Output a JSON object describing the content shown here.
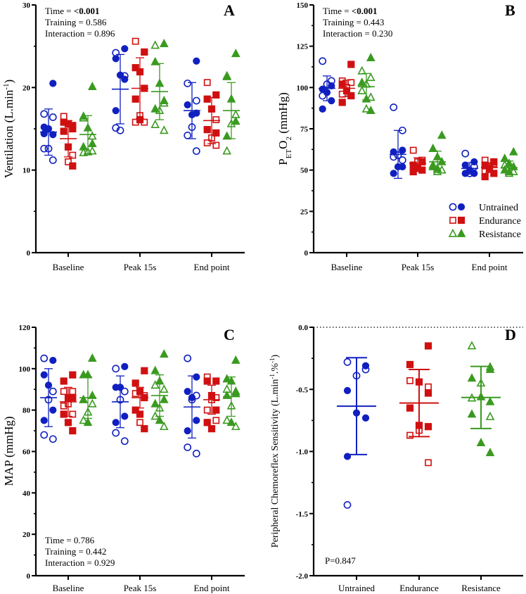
{
  "colors": {
    "untrained": "#1020c0",
    "endurance": "#d01010",
    "resistance": "#3a9a20",
    "axis": "#000000"
  },
  "legend": {
    "placement": "bottom-right of panel B",
    "entries": [
      {
        "name": "Untrained",
        "marker": "circle"
      },
      {
        "name": "Endurance",
        "marker": "square"
      },
      {
        "name": "Resistance",
        "marker": "triangle"
      }
    ]
  },
  "chart_data": [
    {
      "panel": "A",
      "type": "scatter",
      "title": "",
      "xlabel": "",
      "ylabel": "Ventilation (L.min-1)",
      "ylim": [
        0,
        30
      ],
      "yticks": [
        0,
        10,
        20,
        30
      ],
      "ytick_labels": [
        "0",
        "10",
        "20",
        "30"
      ],
      "minor_step": 5,
      "categories": [
        "Baseline",
        "Peak 15s",
        "End point"
      ],
      "stats": {
        "time_label": "Time = ",
        "time_value": "<0.001",
        "time_bold": true,
        "lines": [
          "Training = 0.586",
          "Interaction = 0.896"
        ]
      },
      "stats_position": "top-left",
      "series": [
        {
          "name": "Untrained",
          "groups": [
            {
              "mean": 14.6,
              "sd": 2.8,
              "open": [
                16.8,
                16.4,
                12.6,
                12.6,
                11.2
              ],
              "filled": [
                20.5,
                15.2,
                15.0,
                14.3,
                14.4
              ]
            },
            {
              "mean": 19.8,
              "sd": 4.2,
              "open": [
                24.2,
                21.4,
                14.8,
                15.1
              ],
              "filled": [
                24.7,
                23.5,
                21.5,
                21.0,
                17.2
              ]
            },
            {
              "mean": 17.2,
              "sd": 3.4,
              "open": [
                20.5,
                18.4,
                15.2,
                14.2,
                12.3
              ],
              "filled": [
                23.2,
                17.9,
                16.7,
                16.9
              ]
            }
          ]
        },
        {
          "name": "Endurance",
          "groups": [
            {
              "mean": 13.8,
              "sd": 2.2,
              "open": [
                16.5,
                11.8,
                11.0
              ],
              "filled": [
                15.4,
                15.8,
                15.6,
                15.0,
                14.7,
                12.8,
                10.5
              ]
            },
            {
              "mean": 19.9,
              "sd": 3.7,
              "open": [
                25.6,
                24.3,
                16.6,
                15.8,
                15.8
              ],
              "filled": [
                24.3,
                22.4,
                21.9,
                19.9,
                18.6,
                16.1
              ]
            },
            {
              "mean": 16.0,
              "sd": 2.8,
              "open": [
                20.6,
                16.1,
                13.9,
                13.3,
                13.0
              ],
              "filled": [
                19.1,
                18.6,
                17.4,
                14.5,
                14.9
              ]
            }
          ]
        },
        {
          "name": "Resistance",
          "groups": [
            {
              "mean": 14.3,
              "sd": 2.3,
              "open": [
                16.3,
                14.1,
                12.2,
                12.1,
                12.3
              ],
              "filled": [
                20.1,
                16.5,
                15.1,
                13.2,
                12.8
              ]
            },
            {
              "mean": 19.5,
              "sd": 3.4,
              "open": [
                25.1,
                18.1,
                17.2,
                15.5,
                14.8
              ],
              "filled": [
                25.3,
                23.1,
                20.5,
                18.4,
                17.4
              ]
            },
            {
              "mean": 17.2,
              "sd": 3.4,
              "open": [
                21.3,
                16.7,
                15.6,
                12.3
              ],
              "filled": [
                24.1,
                21.4,
                18.6,
                15.9,
                14.1
              ]
            }
          ]
        }
      ]
    },
    {
      "panel": "B",
      "type": "scatter",
      "title": "",
      "xlabel": "",
      "ylabel": "PETO2 (mmHg)",
      "ylim": [
        0,
        150
      ],
      "yticks": [
        0,
        25,
        50,
        75,
        100,
        125,
        150
      ],
      "ytick_labels": [
        "0",
        "25",
        "50",
        "75",
        "100",
        "125",
        "150"
      ],
      "minor_step": 12.5,
      "categories": [
        "Baseline",
        "Peak 15s",
        "End point"
      ],
      "stats": {
        "time_label": "Time = ",
        "time_value": "<0.001",
        "time_bold": true,
        "lines": [
          "Training = 0.443",
          "Interaction = 0.230"
        ]
      },
      "stats_position": "top-left",
      "series": [
        {
          "name": "Untrained",
          "groups": [
            {
              "mean": 99.5,
              "sd": 7.5,
              "open": [
                116,
                104,
                102,
                95
              ],
              "filled": [
                101,
                99,
                97,
                92,
                87
              ]
            },
            {
              "mean": 59.5,
              "sd": 14.5,
              "open": [
                88,
                74,
                59,
                58,
                56
              ],
              "filled": [
                62,
                61,
                52,
                52,
                48
              ]
            },
            {
              "mean": 51.0,
              "sd": 3.5,
              "open": [
                60,
                52,
                48
              ],
              "filled": [
                55,
                53,
                50,
                48,
                48
              ]
            }
          ]
        },
        {
          "name": "Endurance",
          "groups": [
            {
              "mean": 99.5,
              "sd": 5.0,
              "open": [
                104,
                103,
                100,
                96
              ],
              "filled": [
                114,
                102,
                98,
                95,
                91
              ]
            },
            {
              "mean": 54.0,
              "sd": 3.5,
              "open": [
                62,
                56,
                55
              ],
              "filled": [
                55,
                53,
                51,
                50,
                49
              ]
            },
            {
              "mean": 51.5,
              "sd": 3.0,
              "open": [
                56,
                54,
                52,
                49
              ],
              "filled": [
                55,
                53,
                51,
                48,
                46
              ]
            }
          ]
        },
        {
          "name": "Resistance",
          "groups": [
            {
              "mean": 100.5,
              "sd": 8.0,
              "open": [
                110,
                106,
                102,
                98,
                94,
                87
              ],
              "filled": [
                118,
                103,
                93,
                86
              ]
            },
            {
              "mean": 55.0,
              "sd": 6.5,
              "open": [
                53,
                50,
                49
              ],
              "filled": [
                71,
                63,
                58,
                55,
                52,
                51
              ]
            },
            {
              "mean": 51.5,
              "sd": 4.0,
              "open": [
                53,
                49,
                48
              ],
              "filled": [
                61,
                57,
                54,
                52,
                50,
                49
              ]
            }
          ]
        }
      ]
    },
    {
      "panel": "C",
      "type": "scatter",
      "title": "",
      "xlabel": "",
      "ylabel": "MAP (mmHg)",
      "ylim": [
        0,
        120
      ],
      "yticks": [
        0,
        20,
        40,
        60,
        80,
        100,
        120
      ],
      "ytick_labels": [
        "0",
        "20",
        "40",
        "60",
        "80",
        "100",
        "120"
      ],
      "minor_step": 10,
      "categories": [
        "Baseline",
        "Peak 15s",
        "End point"
      ],
      "stats": {
        "time_label": "Time = ",
        "time_value": "0.786",
        "time_bold": false,
        "lines": [
          "Training = 0.442",
          "Interaction = 0.929"
        ]
      },
      "stats_position": "bottom-left",
      "series": [
        {
          "name": "Untrained",
          "groups": [
            {
              "mean": 86,
              "sd": 14,
              "open": [
                105,
                89,
                85,
                68,
                66
              ],
              "filled": [
                104,
                97,
                92,
                80,
                75
              ]
            },
            {
              "mean": 84,
              "sd": 12.5,
              "open": [
                100,
                89,
                85,
                69,
                65
              ],
              "filled": [
                101,
                91,
                91,
                77,
                74
              ]
            },
            {
              "mean": 81.5,
              "sd": 15,
              "open": [
                105,
                87,
                85,
                62,
                59
              ],
              "filled": [
                96,
                89,
                86,
                75,
                70
              ]
            }
          ]
        },
        {
          "name": "Endurance",
          "groups": [
            {
              "mean": 84,
              "sd": 7,
              "open": [
                89,
                89,
                83,
                82,
                78
              ],
              "filled": [
                97,
                94,
                86,
                86,
                78,
                74,
                70
              ]
            },
            {
              "mean": 86,
              "sd": 5,
              "open": [
                88,
                87,
                74
              ],
              "filled": [
                99,
                93,
                89,
                86,
                80,
                78,
                71
              ]
            },
            {
              "mean": 85,
              "sd": 7,
              "open": [
                96,
                86,
                85,
                80,
                75
              ],
              "filled": [
                94,
                94,
                87,
                80,
                74,
                71
              ]
            }
          ]
        },
        {
          "name": "Resistance",
          "groups": [
            {
              "mean": 86,
              "sd": 10,
              "open": [
                85,
                83,
                79,
                75
              ],
              "filled": [
                105,
                97,
                97,
                87,
                85,
                74
              ]
            },
            {
              "mean": 87,
              "sd": 10,
              "open": [
                92,
                90,
                81,
                77,
                72
              ],
              "filled": [
                107,
                99,
                94,
                85,
                83,
                75
              ]
            },
            {
              "mean": 86.5,
              "sd": 9.5,
              "open": [
                90,
                89,
                82,
                75,
                72
              ],
              "filled": [
                104,
                95,
                94,
                88,
                87,
                74
              ]
            }
          ]
        }
      ]
    },
    {
      "panel": "D",
      "type": "scatter",
      "title": "",
      "xlabel": "",
      "ylabel": "Peripheral Chemoreflex Sensitivity (L.min-1.%-1)",
      "ylim": [
        -2.0,
        0.0
      ],
      "yticks": [
        -2.0,
        -1.5,
        -1.0,
        -0.5,
        0.0
      ],
      "ytick_labels": [
        "-2.0",
        "-1.5",
        "-1.0",
        "-0.5",
        "0.0"
      ],
      "minor_step": 0.25,
      "reference_line": 0.0,
      "categories": [
        "Untrained",
        "Endurance",
        "Resistance"
      ],
      "stats": {
        "time_label": "",
        "time_value": "",
        "time_bold": false,
        "lines": [
          "P=0.847"
        ]
      },
      "stats_position": "bottom-left",
      "series": [
        {
          "name": "Untrained",
          "groups": [
            {
              "mean": -0.635,
              "sd": 0.39,
              "open": [
                -0.28,
                -0.34,
                -0.39,
                -1.43
              ],
              "filled": [
                -0.31,
                -0.51,
                -0.69,
                -0.73,
                -1.04
              ]
            }
          ]
        },
        {
          "name": "Endurance",
          "groups": [
            {
              "mean": -0.61,
              "sd": 0.27,
              "open": [
                -0.43,
                -0.48,
                -0.83,
                -0.87,
                -1.09
              ],
              "filled": [
                -0.15,
                -0.3,
                -0.44,
                -0.53,
                -0.65,
                -0.79,
                -0.8
              ]
            }
          ]
        },
        {
          "name": "Resistance",
          "groups": [
            {
              "mean": -0.565,
              "sd": 0.25,
              "open": [
                -0.15,
                -0.32,
                -0.45,
                -0.57,
                -0.72
              ],
              "filled": [
                -0.34,
                -0.41,
                -0.56,
                -0.6,
                -0.7,
                -0.93,
                -1.01
              ]
            }
          ]
        }
      ]
    }
  ]
}
